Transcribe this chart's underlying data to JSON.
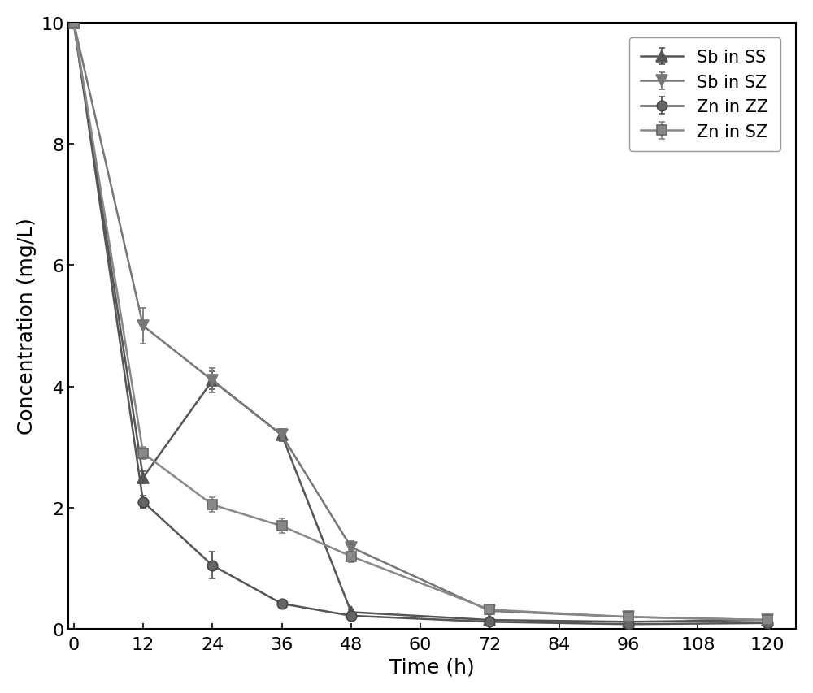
{
  "series": {
    "Sb in SS": {
      "x": [
        0,
        12,
        24,
        36,
        48,
        72,
        96,
        120
      ],
      "y": [
        10.0,
        2.5,
        4.1,
        3.2,
        0.28,
        0.15,
        0.12,
        0.15
      ],
      "yerr": [
        0.0,
        0.1,
        0.15,
        0.1,
        0.05,
        0.03,
        0.03,
        0.03
      ],
      "color": "#555555",
      "marker": "^",
      "markersize": 9,
      "label": "Sb in SS"
    },
    "Sb in SZ": {
      "x": [
        0,
        12,
        24,
        36,
        48,
        72,
        96,
        120
      ],
      "y": [
        10.0,
        5.0,
        4.1,
        3.2,
        1.35,
        0.3,
        0.2,
        0.15
      ],
      "yerr": [
        0.0,
        0.3,
        0.2,
        0.0,
        0.1,
        0.05,
        0.04,
        0.03
      ],
      "color": "#777777",
      "marker": "v",
      "markersize": 9,
      "label": "Sb in SZ"
    },
    "Zn in ZZ": {
      "x": [
        0,
        12,
        24,
        36,
        48,
        72,
        96,
        120
      ],
      "y": [
        10.0,
        2.1,
        1.05,
        0.42,
        0.22,
        0.12,
        0.08,
        0.1
      ],
      "yerr": [
        0.0,
        0.1,
        0.22,
        0.04,
        0.04,
        0.04,
        0.02,
        0.02
      ],
      "color": "#555555",
      "marker": "h",
      "markersize": 9,
      "label": "Zn in ZZ"
    },
    "Zn in SZ": {
      "x": [
        0,
        12,
        24,
        36,
        48,
        72,
        96,
        120
      ],
      "y": [
        10.0,
        2.9,
        2.05,
        1.7,
        1.2,
        0.32,
        0.2,
        0.15
      ],
      "yerr": [
        0.0,
        0.1,
        0.12,
        0.12,
        0.1,
        0.06,
        0.04,
        0.03
      ],
      "color": "#888888",
      "marker": "s",
      "markersize": 8,
      "label": "Zn in SZ"
    }
  },
  "xlabel": "Time (h)",
  "ylabel": "Concentration (mg/L)",
  "xlim": [
    -1,
    125
  ],
  "ylim": [
    0,
    10
  ],
  "xticks": [
    0,
    12,
    24,
    36,
    48,
    60,
    72,
    84,
    96,
    108,
    120
  ],
  "yticks": [
    0,
    2,
    4,
    6,
    8,
    10
  ],
  "linewidth": 1.8,
  "capsize": 3,
  "fontsize_label": 18,
  "fontsize_tick": 16,
  "fontsize_legend": 15,
  "background_color": "#ffffff",
  "elinewidth": 1.3
}
